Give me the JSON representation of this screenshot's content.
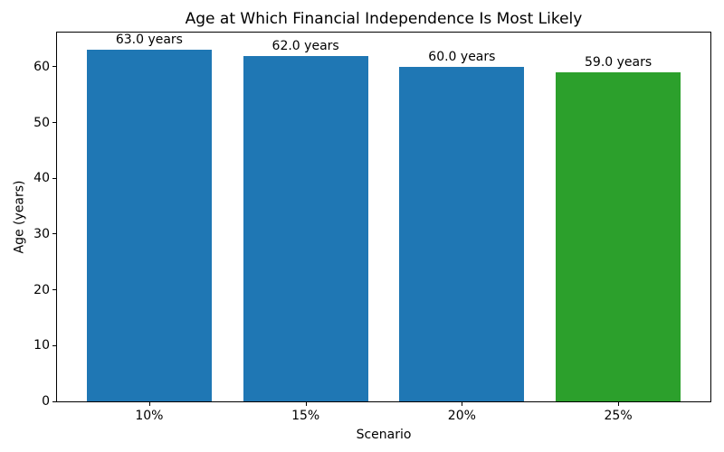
{
  "chart_data": {
    "type": "bar",
    "title": "Age at Which Financial Independence Is Most Likely",
    "xlabel": "Scenario",
    "ylabel": "Age (years)",
    "categories": [
      "10%",
      "15%",
      "20%",
      "25%"
    ],
    "values": [
      63.0,
      62.0,
      60.0,
      59.0
    ],
    "bar_labels": [
      "63.0 years",
      "62.0 years",
      "60.0 years",
      "59.0 years"
    ],
    "bar_colors": [
      "#1f77b4",
      "#1f77b4",
      "#1f77b4",
      "#2ca02c"
    ],
    "ylim": [
      0,
      66.15
    ],
    "yticks": [
      0,
      10,
      20,
      30,
      40,
      50,
      60
    ],
    "grid": false,
    "legend_position": "none"
  }
}
